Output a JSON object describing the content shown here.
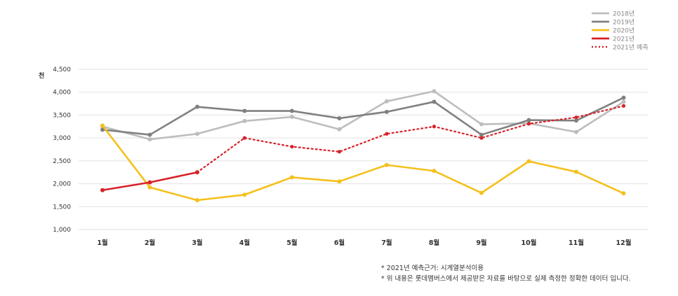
{
  "chart_data": {
    "type": "line",
    "title": "",
    "xlabel": "",
    "ylabel": "천",
    "ylim": [
      1000,
      4500
    ],
    "yticks": [
      1000,
      1500,
      2000,
      2500,
      3000,
      3500,
      4000,
      4500
    ],
    "ytick_labels": [
      "1,000",
      "1,500",
      "2,000",
      "2,500",
      "3,000",
      "3,500",
      "4,000",
      "4,500"
    ],
    "categories": [
      "1월",
      "2월",
      "3월",
      "4월",
      "5월",
      "6월",
      "7월",
      "8월",
      "9월",
      "10월",
      "11월",
      "12월"
    ],
    "grid": true,
    "legend_position": "top-right",
    "series": [
      {
        "name": "2018년",
        "color": "#bdbdbd",
        "style": "solid",
        "values": [
          3250,
          2970,
          3090,
          3370,
          3460,
          3190,
          3800,
          4020,
          3300,
          3320,
          3130,
          3790
        ]
      },
      {
        "name": "2019년",
        "color": "#808080",
        "style": "solid",
        "values": [
          3180,
          3070,
          3680,
          3590,
          3590,
          3430,
          3570,
          3790,
          3070,
          3390,
          3380,
          3880
        ]
      },
      {
        "name": "2020년",
        "color": "#f5c01c",
        "style": "solid",
        "values": [
          3270,
          1920,
          1640,
          1760,
          2140,
          2050,
          2410,
          2280,
          1800,
          2490,
          2260,
          1790
        ]
      },
      {
        "name": "2021년",
        "color": "#d8222a",
        "style": "solid",
        "values": [
          1860,
          2030,
          2250,
          null,
          null,
          null,
          null,
          null,
          null,
          null,
          null,
          null
        ]
      },
      {
        "name": "2021년 예측",
        "color": "#d8222a",
        "style": "dotted",
        "values": [
          null,
          null,
          2250,
          3000,
          2810,
          2700,
          3090,
          3250,
          3000,
          3310,
          3450,
          3700
        ]
      }
    ],
    "notes": [
      "* 2021년 예측근거: 시계열분석이용",
      "* 위 내용은 롯데멤버스에서 제공받은 자료를 바탕으로 실제 측정한 정확한 데이터 입니다."
    ]
  }
}
